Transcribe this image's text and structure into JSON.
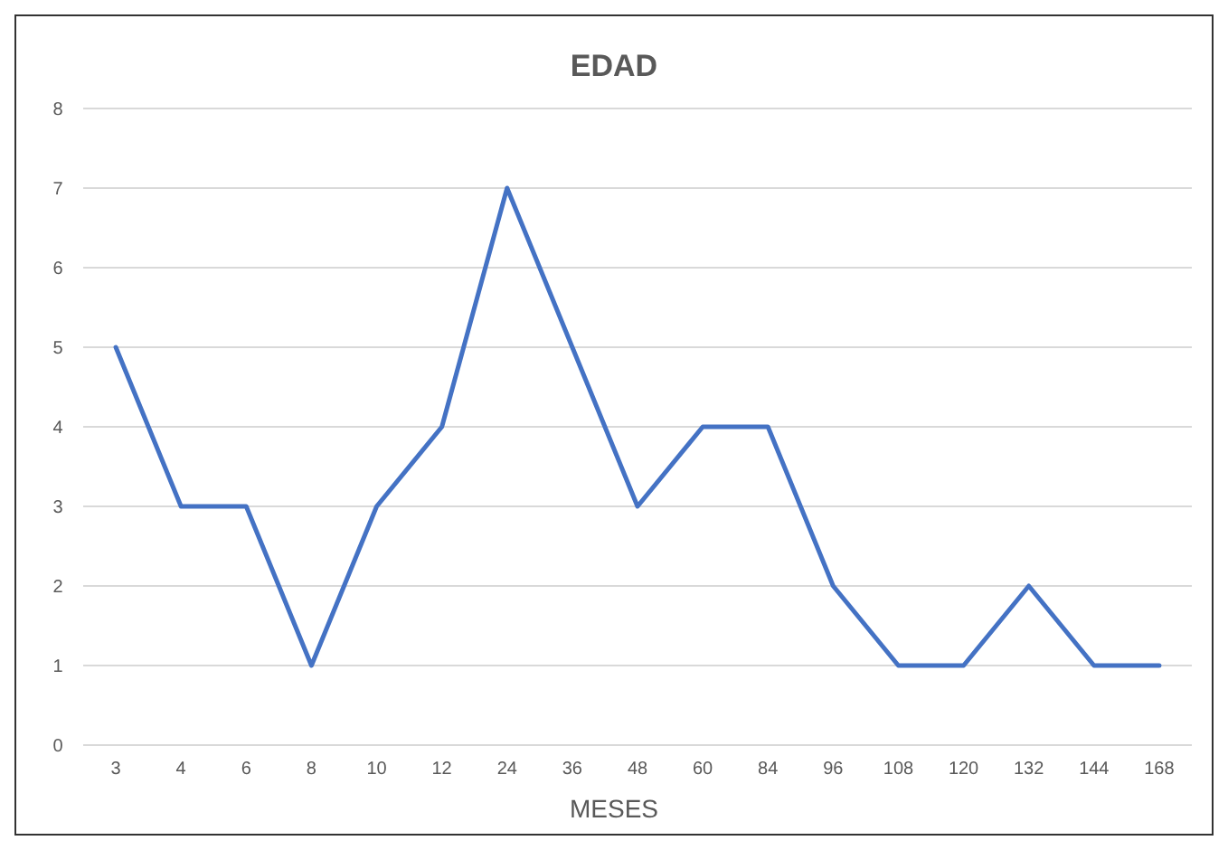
{
  "chart_data": {
    "type": "line",
    "title": "EDAD",
    "xlabel": "MESES",
    "categories": [
      "3",
      "4",
      "6",
      "8",
      "10",
      "12",
      "24",
      "36",
      "48",
      "60",
      "84",
      "96",
      "108",
      "120",
      "132",
      "144",
      "168"
    ],
    "values": [
      5,
      3,
      3,
      1,
      3,
      4,
      7,
      5,
      3,
      4,
      4,
      2,
      1,
      1,
      2,
      1,
      1
    ],
    "color": "#4472c4",
    "ylim": [
      0,
      8
    ],
    "yticks": [
      0,
      1,
      2,
      3,
      4,
      5,
      6,
      7,
      8
    ],
    "grid": "y",
    "marker": "none",
    "line_style": "solid"
  }
}
